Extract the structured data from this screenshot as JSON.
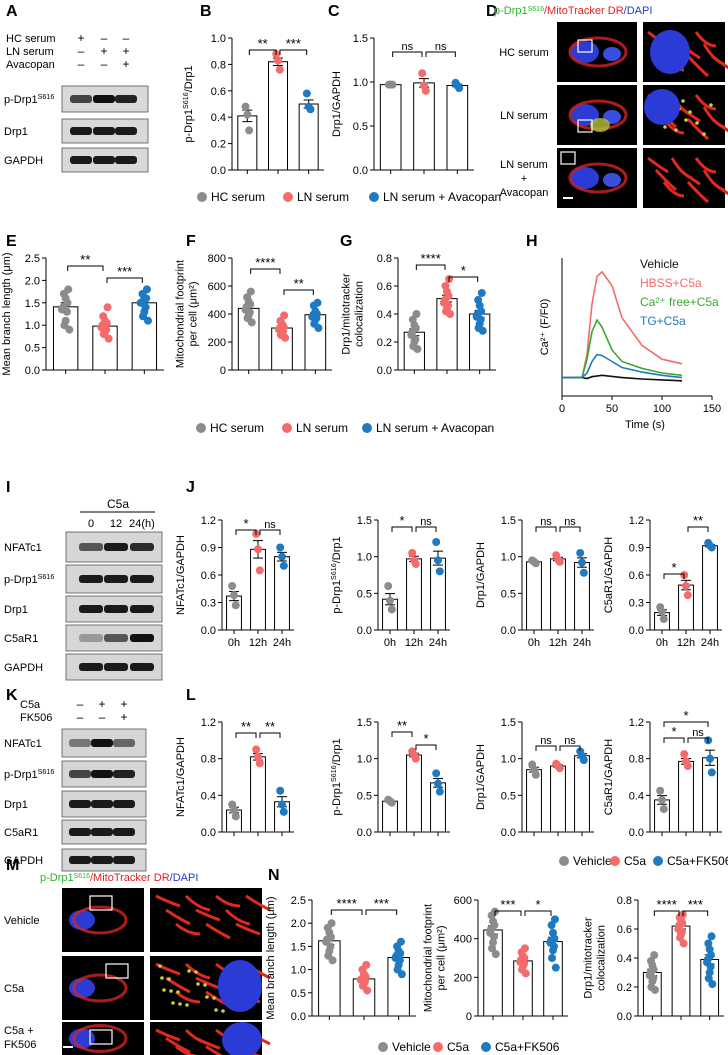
{
  "panel_labels": [
    "A",
    "B",
    "C",
    "D",
    "E",
    "F",
    "G",
    "H",
    "I",
    "J",
    "K",
    "L",
    "M",
    "N"
  ],
  "colors": {
    "hc": "#8c8c8c",
    "ln": "#f36b6b",
    "avac": "#1f7ac2",
    "green": "#3aa635",
    "black": "#111111"
  },
  "A": {
    "conditions": [
      {
        "label": "HC serum",
        "signs": [
          "+",
          "–",
          "–"
        ]
      },
      {
        "label": "LN serum",
        "signs": [
          "–",
          "+",
          "+"
        ]
      },
      {
        "label": "Avacopan",
        "signs": [
          "–",
          "–",
          "+"
        ]
      }
    ],
    "blots": [
      "p-Drp1",
      "Drp1",
      "GAPDH"
    ],
    "blot_sup": [
      "S616",
      "",
      ""
    ]
  },
  "D": {
    "title_parts": [
      "p-Drp1",
      "S616",
      "/MitoTracker DR",
      "/DAPI"
    ],
    "rows": [
      "HC serum",
      "LN serum",
      "LN serum\n+\nAvacopan"
    ]
  },
  "legend1": [
    "HC serum",
    "LN serum",
    "LN serum + Avacopan"
  ],
  "legend2": [
    "HC serum",
    "LN serum",
    "LN serum + Avacopan"
  ],
  "legend3": [
    "Vehicle",
    "C5a",
    "C5a+FK506"
  ],
  "legend4": [
    "Vehicle",
    "C5a",
    "C5a+FK506"
  ],
  "H": {
    "legend": [
      "Vehicle",
      "HBSS+C5a",
      "Ca²⁺ free+C5a",
      "TG+C5a"
    ],
    "ylabel": "Ca²⁺ (F/F0)",
    "xlabel": "Time (s)"
  },
  "I": {
    "header": "C5a",
    "times": [
      "0",
      "12",
      "24(h)"
    ],
    "blots": [
      "NFATc1",
      "p-Drp1",
      "Drp1",
      "C5aR1",
      "GAPDH"
    ],
    "blot_sup": [
      "",
      "S616",
      "",
      "",
      ""
    ]
  },
  "K": {
    "conditions": [
      {
        "label": "C5a",
        "signs": [
          "–",
          "+",
          "+"
        ]
      },
      {
        "label": "FK506",
        "signs": [
          "–",
          "–",
          "+"
        ]
      }
    ],
    "blots": [
      "NFATc1",
      "p-Drp1",
      "Drp1",
      "C5aR1",
      "GAPDH"
    ],
    "blot_sup": [
      "",
      "S616",
      "",
      "",
      ""
    ]
  },
  "M": {
    "title_parts": [
      "p-Drp1",
      "S616",
      "/MitoTracker DR",
      "/DAPI"
    ],
    "rows": [
      "Vehicle",
      "C5a",
      "C5a +\nFK506"
    ]
  },
  "chart_data": [
    {
      "panel": "B",
      "type": "bar",
      "ylabel": "p-Drp1S616/Drp1",
      "categories": [
        "HC serum",
        "LN serum",
        "LN serum + Avacopan"
      ],
      "values": [
        0.41,
        0.82,
        0.5
      ],
      "ylim": [
        0,
        1.0
      ],
      "yticks": [
        "0.0",
        "0.2",
        "0.4",
        "0.6",
        "0.8",
        "1.0"
      ],
      "points": [
        [
          0.48,
          0.42,
          0.3
        ],
        [
          0.88,
          0.83,
          0.76
        ],
        [
          0.58,
          0.48,
          0.46
        ]
      ],
      "sig": [
        {
          "text": "**"
        },
        {
          "text": "***"
        }
      ]
    },
    {
      "panel": "C",
      "type": "bar",
      "ylabel": "Drp1/GAPDH",
      "categories": [
        "HC serum",
        "LN serum",
        "LN serum + Avacopan"
      ],
      "values": [
        0.97,
        0.99,
        0.96
      ],
      "ylim": [
        0,
        1.5
      ],
      "yticks": [
        "0.0",
        "0.5",
        "1.0",
        "1.5"
      ],
      "points": [
        [
          0.97,
          0.97,
          0.97
        ],
        [
          1.1,
          0.96,
          0.9
        ],
        [
          0.99,
          0.96,
          0.93
        ]
      ],
      "sig": [
        {
          "text": "ns"
        },
        {
          "text": "ns"
        }
      ]
    },
    {
      "panel": "E",
      "type": "bar",
      "ylabel": "Mean branch length (μm)",
      "categories": [
        "HC serum",
        "LN serum",
        "LN serum + Avacopan"
      ],
      "values": [
        1.41,
        0.98,
        1.5
      ],
      "ylim": [
        0,
        2.5
      ],
      "yticks": [
        "0.0",
        "0.5",
        "1.0",
        "1.5",
        "2.0",
        "2.5"
      ],
      "points": [
        [
          1.8,
          1.7,
          1.6,
          1.5,
          1.4,
          1.35,
          1.3,
          1.1,
          1.0,
          0.9
        ],
        [
          1.4,
          1.2,
          1.1,
          1.05,
          1.0,
          0.95,
          0.9,
          0.85,
          0.8,
          0.7
        ],
        [
          1.8,
          1.7,
          1.6,
          1.6,
          1.5,
          1.5,
          1.4,
          1.3,
          1.2,
          1.1
        ]
      ],
      "sig": [
        {
          "text": "**"
        },
        {
          "text": "***"
        }
      ]
    },
    {
      "panel": "F",
      "type": "bar",
      "ylabel": "Mitochondrial footprint per cell (μm²)",
      "categories": [
        "HC serum",
        "LN serum",
        "LN serum + Avacopan"
      ],
      "values": [
        440,
        300,
        395
      ],
      "ylim": [
        0,
        800
      ],
      "yticks": [
        "0",
        "200",
        "400",
        "600",
        "800"
      ],
      "points": [
        [
          560,
          520,
          490,
          470,
          450,
          430,
          410,
          390,
          370,
          340
        ],
        [
          390,
          350,
          330,
          310,
          300,
          290,
          280,
          270,
          250,
          230
        ],
        [
          480,
          460,
          420,
          400,
          390,
          380,
          370,
          360,
          330,
          300
        ]
      ],
      "sig": [
        {
          "text": "****"
        },
        {
          "text": "**"
        }
      ]
    },
    {
      "panel": "G",
      "type": "bar",
      "ylabel": "Drp1/mitotracker colocalization",
      "categories": [
        "HC serum",
        "LN serum",
        "LN serum + Avacopan"
      ],
      "values": [
        0.27,
        0.51,
        0.4
      ],
      "ylim": [
        0,
        0.8
      ],
      "yticks": [
        "0.0",
        "0.2",
        "0.4",
        "0.6",
        "0.8"
      ],
      "points": [
        [
          0.4,
          0.36,
          0.32,
          0.3,
          0.27,
          0.25,
          0.22,
          0.2,
          0.17,
          0.15
        ],
        [
          0.65,
          0.6,
          0.56,
          0.53,
          0.5,
          0.48,
          0.46,
          0.44,
          0.42,
          0.4
        ],
        [
          0.55,
          0.5,
          0.46,
          0.42,
          0.4,
          0.38,
          0.36,
          0.33,
          0.3,
          0.28
        ]
      ],
      "sig": [
        {
          "text": "****"
        },
        {
          "text": "*"
        }
      ]
    },
    {
      "panel": "H",
      "type": "line",
      "ylabel": "Ca²⁺ (F/F0)",
      "xlabel": "Time (s)",
      "xlim": [
        0,
        150
      ],
      "xticks": [
        "0",
        "50",
        "100",
        "150"
      ],
      "series": [
        {
          "name": "Vehicle",
          "color": "#111111",
          "x": [
            0,
            20,
            25,
            30,
            40,
            60,
            80,
            100,
            120
          ],
          "y": [
            1.0,
            1.0,
            0.98,
            1.02,
            1.05,
            1.0,
            0.97,
            0.95,
            0.93
          ]
        },
        {
          "name": "HBSS+C5a",
          "color": "#f36b6b",
          "x": [
            0,
            20,
            25,
            30,
            35,
            40,
            50,
            60,
            80,
            100,
            120
          ],
          "y": [
            1.0,
            1.0,
            1.5,
            2.6,
            3.2,
            3.3,
            3.0,
            2.3,
            1.7,
            1.4,
            1.3
          ]
        },
        {
          "name": "Ca²⁺ free+C5a",
          "color": "#3aa635",
          "x": [
            0,
            20,
            25,
            30,
            35,
            40,
            50,
            60,
            80,
            100,
            120
          ],
          "y": [
            1.0,
            1.0,
            1.4,
            2.0,
            2.25,
            2.1,
            1.6,
            1.35,
            1.2,
            1.1,
            1.05
          ]
        },
        {
          "name": "TG+C5a",
          "color": "#1f7ac2",
          "x": [
            0,
            20,
            25,
            30,
            35,
            40,
            50,
            60,
            80,
            100,
            120
          ],
          "y": [
            1.0,
            1.0,
            1.1,
            1.35,
            1.5,
            1.48,
            1.35,
            1.22,
            1.12,
            1.05,
            1.0
          ]
        }
      ]
    },
    {
      "panel": "J1",
      "type": "bar",
      "ylabel": "NFATc1/GAPDH",
      "categories": [
        "0h",
        "12h",
        "24h"
      ],
      "values": [
        0.37,
        0.88,
        0.8
      ],
      "ylim": [
        0,
        1.2
      ],
      "yticks": [
        "0.0",
        "0.3",
        "0.6",
        "0.9",
        "1.2"
      ],
      "points": [
        [
          0.48,
          0.38,
          0.27
        ],
        [
          1.05,
          0.88,
          0.65
        ],
        [
          0.9,
          0.8,
          0.7
        ]
      ],
      "sig": [
        {
          "text": "*"
        },
        {
          "text": "ns"
        }
      ]
    },
    {
      "panel": "J2",
      "type": "bar",
      "ylabel": "p-Drp1S616/Drp1",
      "categories": [
        "0h",
        "12h",
        "24h"
      ],
      "values": [
        0.42,
        0.97,
        0.98
      ],
      "ylim": [
        0,
        1.5
      ],
      "yticks": [
        "0.0",
        "0.5",
        "1.0",
        "1.5"
      ],
      "points": [
        [
          0.6,
          0.4,
          0.28
        ],
        [
          1.05,
          0.95,
          0.9
        ],
        [
          1.2,
          0.95,
          0.8
        ]
      ],
      "sig": [
        {
          "text": "*"
        },
        {
          "text": "ns"
        }
      ]
    },
    {
      "panel": "J3",
      "type": "bar",
      "ylabel": "Drp1/GAPDH",
      "categories": [
        "0h",
        "12h",
        "24h"
      ],
      "values": [
        0.93,
        0.97,
        0.92
      ],
      "ylim": [
        0,
        1.5
      ],
      "yticks": [
        "0.0",
        "0.5",
        "1.0",
        "1.5"
      ],
      "points": [
        [
          0.95,
          0.93,
          0.91
        ],
        [
          1.02,
          0.96,
          0.93
        ],
        [
          1.05,
          0.92,
          0.78
        ]
      ],
      "sig": [
        {
          "text": "ns"
        },
        {
          "text": "ns"
        }
      ]
    },
    {
      "panel": "J4",
      "type": "bar",
      "ylabel": "C5aR1/GAPDH",
      "categories": [
        "0h",
        "12h",
        "24h"
      ],
      "values": [
        0.19,
        0.49,
        0.92
      ],
      "ylim": [
        0,
        1.2
      ],
      "yticks": [
        "0.0",
        "0.3",
        "0.6",
        "0.9",
        "1.2"
      ],
      "points": [
        [
          0.25,
          0.2,
          0.12
        ],
        [
          0.6,
          0.48,
          0.38
        ],
        [
          0.95,
          0.92,
          0.9
        ]
      ],
      "sig": [
        {
          "text": "*"
        },
        {
          "text": "**"
        }
      ]
    },
    {
      "panel": "L1",
      "type": "bar",
      "ylabel": "NFATc1/GAPDH",
      "categories": [
        "Vehicle",
        "C5a",
        "C5a+FK506"
      ],
      "values": [
        0.24,
        0.82,
        0.33
      ],
      "ylim": [
        0,
        1.2
      ],
      "yticks": [
        "0.0",
        "0.4",
        "0.8",
        "1.2"
      ],
      "points": [
        [
          0.3,
          0.24,
          0.17
        ],
        [
          0.9,
          0.82,
          0.75
        ],
        [
          0.45,
          0.3,
          0.22
        ]
      ],
      "sig": [
        {
          "text": "**"
        },
        {
          "text": "**"
        }
      ]
    },
    {
      "panel": "L2",
      "type": "bar",
      "ylabel": "p-Drp1S616/Drp1",
      "categories": [
        "Vehicle",
        "C5a",
        "C5a+FK506"
      ],
      "values": [
        0.42,
        1.05,
        0.67
      ],
      "ylim": [
        0,
        1.5
      ],
      "yticks": [
        "0.0",
        "0.5",
        "1.0",
        "1.5"
      ],
      "points": [
        [
          0.44,
          0.42,
          0.4
        ],
        [
          1.1,
          1.05,
          1.0
        ],
        [
          0.8,
          0.66,
          0.55
        ]
      ],
      "sig": [
        {
          "text": "**"
        },
        {
          "text": "*"
        }
      ]
    },
    {
      "panel": "L3",
      "type": "bar",
      "ylabel": "Drp1/GAPDH",
      "categories": [
        "Vehicle",
        "C5a",
        "C5a+FK506"
      ],
      "values": [
        0.85,
        0.9,
        1.04
      ],
      "ylim": [
        0,
        1.5
      ],
      "yticks": [
        "0.0",
        "0.5",
        "1.0",
        "1.5"
      ],
      "points": [
        [
          0.92,
          0.85,
          0.78
        ],
        [
          0.93,
          0.9,
          0.87
        ],
        [
          1.1,
          1.04,
          0.98
        ]
      ],
      "sig": [
        {
          "text": "ns"
        },
        {
          "text": "ns"
        }
      ]
    },
    {
      "panel": "L4",
      "type": "bar",
      "ylabel": "C5aR1/GAPDH",
      "categories": [
        "Vehicle",
        "C5a",
        "C5a+FK506"
      ],
      "values": [
        0.35,
        0.77,
        0.81
      ],
      "ylim": [
        0,
        1.2
      ],
      "yticks": [
        "0.0",
        "0.4",
        "0.8",
        "1.2"
      ],
      "points": [
        [
          0.45,
          0.35,
          0.25
        ],
        [
          0.85,
          0.77,
          0.72
        ],
        [
          1.0,
          0.8,
          0.65
        ]
      ],
      "sig": [
        {
          "text": "*"
        },
        {
          "text": "ns"
        },
        {
          "text": "*"
        }
      ]
    },
    {
      "panel": "N1",
      "type": "bar",
      "ylabel": "Mean branch length (μm)",
      "categories": [
        "Vehicle",
        "C5a",
        "C5a+FK506"
      ],
      "values": [
        1.62,
        0.8,
        1.26
      ],
      "ylim": [
        0,
        2.5
      ],
      "yticks": [
        "0.0",
        "0.5",
        "1.0",
        "1.5",
        "2.0",
        "2.5"
      ],
      "points": [
        [
          2.0,
          1.9,
          1.8,
          1.7,
          1.65,
          1.6,
          1.5,
          1.4,
          1.3,
          1.2
        ],
        [
          1.1,
          1.0,
          0.9,
          0.85,
          0.8,
          0.78,
          0.75,
          0.7,
          0.65,
          0.55
        ],
        [
          1.6,
          1.5,
          1.4,
          1.35,
          1.3,
          1.25,
          1.2,
          1.1,
          1.0,
          0.9
        ]
      ],
      "sig": [
        {
          "text": "****"
        },
        {
          "text": "***"
        }
      ]
    },
    {
      "panel": "N2",
      "type": "bar",
      "ylabel": "Mitochondrial footprint per cell (μm²)",
      "categories": [
        "Vehicle",
        "C5a",
        "C5a+FK506"
      ],
      "values": [
        445,
        285,
        385
      ],
      "ylim": [
        0,
        600
      ],
      "yticks": [
        "0",
        "200",
        "400",
        "600"
      ],
      "points": [
        [
          540,
          520,
          490,
          470,
          450,
          430,
          410,
          380,
          350,
          320
        ],
        [
          350,
          330,
          310,
          300,
          290,
          280,
          270,
          260,
          240,
          220
        ],
        [
          500,
          470,
          430,
          400,
          390,
          380,
          360,
          340,
          300,
          250
        ]
      ],
      "sig": [
        {
          "text": "***"
        },
        {
          "text": "*"
        }
      ]
    },
    {
      "panel": "N3",
      "type": "bar",
      "ylabel": "Drp1/mitotracker colocalization",
      "categories": [
        "Vehicle",
        "C5a",
        "C5a+FK506"
      ],
      "values": [
        0.3,
        0.62,
        0.39
      ],
      "ylim": [
        0,
        0.8
      ],
      "yticks": [
        "0.0",
        "0.2",
        "0.4",
        "0.6",
        "0.8"
      ],
      "points": [
        [
          0.42,
          0.38,
          0.35,
          0.32,
          0.3,
          0.28,
          0.26,
          0.24,
          0.2,
          0.18
        ],
        [
          0.7,
          0.68,
          0.66,
          0.64,
          0.62,
          0.6,
          0.58,
          0.56,
          0.54,
          0.5
        ],
        [
          0.55,
          0.5,
          0.46,
          0.42,
          0.39,
          0.37,
          0.34,
          0.3,
          0.26,
          0.22
        ]
      ],
      "sig": [
        {
          "text": "****"
        },
        {
          "text": "***"
        }
      ]
    }
  ]
}
